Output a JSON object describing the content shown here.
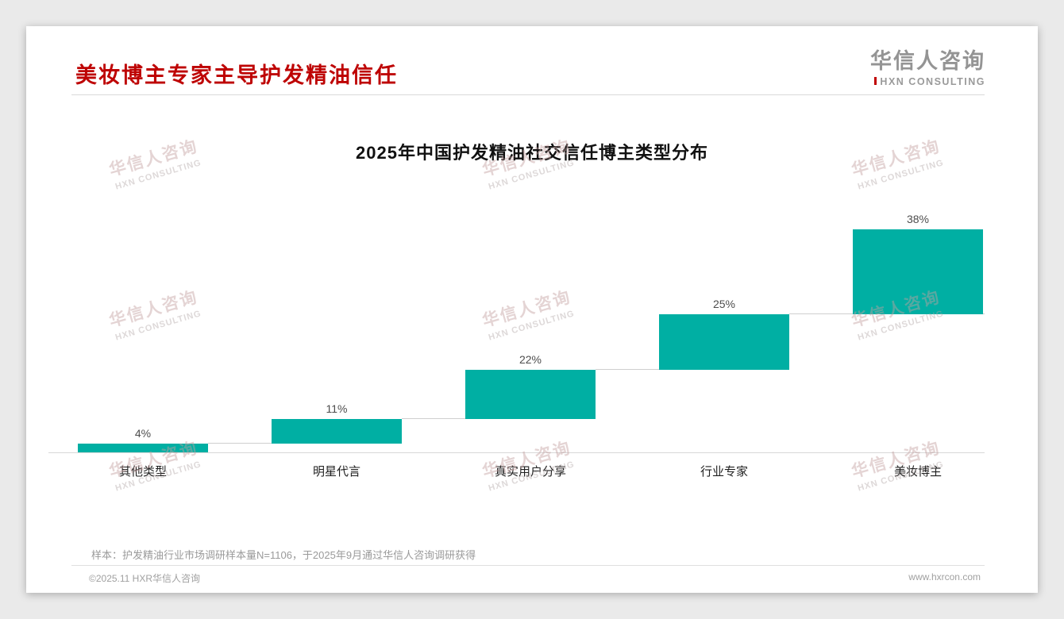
{
  "header": {
    "title": "美妆博主专家主导护发精油信任",
    "logo_cn": "华信人咨询",
    "logo_en": "HXN CONSULTING"
  },
  "chart_data": {
    "type": "bar",
    "subtype": "waterfall-steps",
    "title": "2025年中国护发精油社交信任博主类型分布",
    "categories": [
      "其他类型",
      "明星代言",
      "真实用户分享",
      "行业专家",
      "美妆博主"
    ],
    "values": [
      4,
      11,
      22,
      25,
      38
    ],
    "value_labels": [
      "4%",
      "11%",
      "22%",
      "25%",
      "38%"
    ],
    "cumulative_start": [
      0,
      4,
      15,
      37,
      62
    ],
    "unit": "%",
    "ylim": [
      0,
      100
    ],
    "xlabel": "",
    "ylabel": "",
    "grid": "off",
    "legend": "none",
    "bar_color": "#00AFA3",
    "connector_color": "#cfcfcf"
  },
  "footnote": "样本：护发精油行业市场调研样本量N=1106，于2025年9月通过华信人咨询调研获得",
  "footer": {
    "left": "©2025.11 HXR华信人咨询",
    "right": "www.hxrcon.com"
  },
  "watermark": {
    "line1": "华信人咨询",
    "line2": "HXN CONSULTING"
  },
  "colors": {
    "title_red": "#BE0303",
    "bar_teal": "#00AFA3",
    "logo_gray": "#949494"
  }
}
